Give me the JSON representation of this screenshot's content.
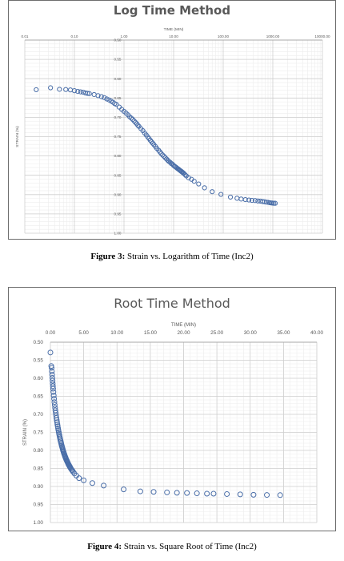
{
  "figures": [
    {
      "label": "Figure 3:",
      "caption": "Strain vs. Logarithm of Time (Inc2)"
    },
    {
      "label": "Figure 4:",
      "caption": "Strain vs. Square Root of Time (Inc2)"
    }
  ],
  "chart_data": [
    {
      "type": "scatter",
      "title": "Log Time Method",
      "xlabel": "TIME (MIN)",
      "ylabel": "STRAIN (%)",
      "xscale": "log",
      "xlim": [
        0.01,
        10000
      ],
      "ylim": [
        0.5,
        1.0
      ],
      "y_inverted": true,
      "xticks": [
        "0.01",
        "0.10",
        "1.00",
        "10.00",
        "100.00",
        "1000.00",
        "10000.00"
      ],
      "yticks": [
        "0.50",
        "0.55",
        "0.60",
        "0.65",
        "0.70",
        "0.75",
        "0.80",
        "0.85",
        "0.90",
        "0.95",
        "1.00"
      ],
      "grid": true,
      "marker_color": "#4a6ea8",
      "series": [
        {
          "x": [
            0.017,
            0.033,
            0.05,
            0.067,
            0.083,
            0.1,
            0.117,
            0.133,
            0.15,
            0.167,
            0.183,
            0.2,
            0.25,
            0.3,
            0.35,
            0.4,
            0.45,
            0.5,
            0.55,
            0.6,
            0.65,
            0.7,
            0.8,
            0.9,
            1.0,
            1.1,
            1.2,
            1.3,
            1.4,
            1.5,
            1.6,
            1.7,
            1.8,
            1.9,
            2.0,
            2.2,
            2.4,
            2.6,
            2.8,
            3.0,
            3.2,
            3.4,
            3.6,
            3.8,
            4.0,
            4.3,
            4.6,
            5.0,
            5.3,
            5.6,
            6.0,
            6.4,
            6.8,
            7.2,
            7.6,
            8.0,
            8.5,
            9.0,
            9.5,
            10.0,
            10.5,
            11.0,
            11.5,
            12.0,
            12.5,
            13.0,
            13.5,
            14.0,
            14.5,
            15.0,
            15.5,
            16.0,
            17.0,
            18.0,
            20.0,
            23.0,
            26.0,
            32.0,
            42.0,
            60.0,
            90.0,
            140.0,
            190.0,
            230.0,
            280.0,
            330.0,
            380.0,
            440.0,
            500.0,
            560.0,
            620.0,
            680.0,
            740.0,
            800.0,
            860.0,
            920.0,
            980.0,
            1050.0,
            1120.0
          ],
          "y": [
            0.6285,
            0.6235,
            0.6275,
            0.628,
            0.629,
            0.631,
            0.633,
            0.634,
            0.635,
            0.637,
            0.638,
            0.6385,
            0.641,
            0.644,
            0.6465,
            0.649,
            0.6525,
            0.655,
            0.658,
            0.661,
            0.6645,
            0.6665,
            0.6735,
            0.6795,
            0.6845,
            0.689,
            0.6935,
            0.6985,
            0.702,
            0.7055,
            0.7095,
            0.713,
            0.7165,
            0.7205,
            0.7235,
            0.7295,
            0.7345,
            0.7405,
            0.7455,
            0.7505,
            0.755,
            0.7595,
            0.7635,
            0.767,
            0.7705,
            0.7755,
            0.7805,
            0.7855,
            0.7895,
            0.7935,
            0.7975,
            0.801,
            0.8045,
            0.808,
            0.811,
            0.814,
            0.8165,
            0.8195,
            0.8215,
            0.8245,
            0.827,
            0.8285,
            0.8305,
            0.8325,
            0.834,
            0.836,
            0.8375,
            0.839,
            0.8405,
            0.842,
            0.8435,
            0.845,
            0.8485,
            0.8515,
            0.8565,
            0.8605,
            0.8655,
            0.8725,
            0.8825,
            0.8925,
            0.8995,
            0.9065,
            0.9095,
            0.9115,
            0.913,
            0.914,
            0.915,
            0.9155,
            0.9165,
            0.917,
            0.918,
            0.9185,
            0.9195,
            0.92,
            0.921,
            0.9215,
            0.922,
            0.9225,
            0.9225
          ]
        }
      ]
    },
    {
      "type": "scatter",
      "title": "Root Time Method",
      "xlabel": "TIME (MIN)",
      "ylabel": "STRAIN (%)",
      "xlim": [
        0,
        40
      ],
      "ylim": [
        0.5,
        1.0
      ],
      "y_inverted": true,
      "xticks": [
        "0.00",
        "5.00",
        "10.00",
        "15.00",
        "20.00",
        "25.00",
        "30.00",
        "35.00",
        "40.00"
      ],
      "yticks": [
        "0.50",
        "0.55",
        "0.60",
        "0.65",
        "0.70",
        "0.75",
        "0.80",
        "0.85",
        "0.90",
        "0.95",
        "1.00"
      ],
      "grid": true,
      "marker_color": "#4a6ea8",
      "series": [
        {
          "x": [
            0.0,
            0.13,
            0.18,
            0.22,
            0.26,
            0.29,
            0.32,
            0.35,
            0.38,
            0.41,
            0.45,
            0.5,
            0.55,
            0.6,
            0.65,
            0.7,
            0.75,
            0.8,
            0.85,
            0.9,
            0.95,
            1.0,
            1.05,
            1.1,
            1.15,
            1.2,
            1.25,
            1.3,
            1.35,
            1.4,
            1.45,
            1.5,
            1.55,
            1.6,
            1.65,
            1.7,
            1.75,
            1.8,
            1.85,
            1.9,
            1.95,
            2.0,
            2.05,
            2.1,
            2.15,
            2.2,
            2.25,
            2.3,
            2.35,
            2.4,
            2.45,
            2.5,
            2.55,
            2.6,
            2.65,
            2.7,
            2.75,
            2.8,
            2.85,
            2.9,
            2.95,
            3.0,
            3.1,
            3.2,
            3.3,
            3.4,
            3.6,
            3.9,
            4.3,
            5.0,
            6.3,
            8.0,
            11.0,
            13.5,
            15.5,
            17.5,
            19.0,
            20.5,
            22.0,
            23.5,
            24.5,
            26.5,
            28.5,
            30.5,
            32.5,
            34.5
          ],
          "y": [
            0.5285,
            0.566,
            0.571,
            0.581,
            0.59,
            0.599,
            0.607,
            0.615,
            0.622,
            0.629,
            0.638,
            0.648,
            0.657,
            0.666,
            0.674,
            0.682,
            0.689,
            0.696,
            0.703,
            0.71,
            0.716,
            0.722,
            0.728,
            0.733,
            0.739,
            0.744,
            0.749,
            0.754,
            0.758,
            0.763,
            0.767,
            0.771,
            0.775,
            0.779,
            0.783,
            0.787,
            0.79,
            0.793,
            0.797,
            0.8,
            0.803,
            0.806,
            0.809,
            0.811,
            0.814,
            0.817,
            0.819,
            0.821,
            0.824,
            0.826,
            0.828,
            0.83,
            0.832,
            0.834,
            0.836,
            0.838,
            0.84,
            0.841,
            0.843,
            0.845,
            0.846,
            0.848,
            0.851,
            0.854,
            0.856,
            0.859,
            0.864,
            0.87,
            0.877,
            0.883,
            0.8905,
            0.8975,
            0.908,
            0.9135,
            0.915,
            0.9165,
            0.9175,
            0.918,
            0.919,
            0.92,
            0.92,
            0.921,
            0.922,
            0.923,
            0.9235,
            0.924
          ]
        }
      ]
    }
  ]
}
